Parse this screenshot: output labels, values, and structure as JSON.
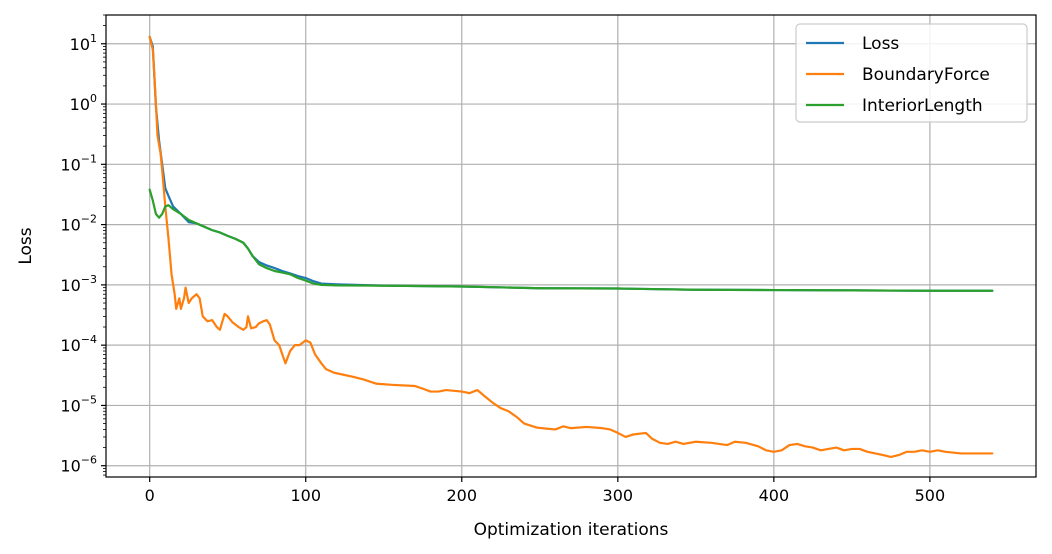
{
  "chart_data": {
    "type": "line",
    "title": "",
    "xlabel": "Optimization iterations",
    "ylabel": "Loss",
    "yscale": "log",
    "xlim": [
      -28,
      568
    ],
    "ylim": [
      6.5e-07,
      30
    ],
    "grid": true,
    "legend_position": "top-right",
    "x_ticks": [
      0,
      100,
      200,
      300,
      400,
      500
    ],
    "y_ticks": [
      {
        "value": 1e-06,
        "label": "10",
        "exp": "−6"
      },
      {
        "value": 1e-05,
        "label": "10",
        "exp": "−5"
      },
      {
        "value": 0.0001,
        "label": "10",
        "exp": "−4"
      },
      {
        "value": 0.001,
        "label": "10",
        "exp": "−3"
      },
      {
        "value": 0.01,
        "label": "10",
        "exp": "−2"
      },
      {
        "value": 0.1,
        "label": "10",
        "exp": "−1"
      },
      {
        "value": 1,
        "label": "10",
        "exp": "0"
      },
      {
        "value": 10,
        "label": "10",
        "exp": "1"
      }
    ],
    "series": [
      {
        "name": "Loss",
        "color": "#1f77b4",
        "points": [
          [
            0,
            13
          ],
          [
            2,
            9
          ],
          [
            4,
            0.9
          ],
          [
            6,
            0.25
          ],
          [
            8,
            0.1
          ],
          [
            10,
            0.04
          ],
          [
            12,
            0.03
          ],
          [
            15,
            0.02
          ],
          [
            20,
            0.015
          ],
          [
            25,
            0.011
          ],
          [
            30,
            0.0105
          ],
          [
            35,
            0.0092
          ],
          [
            40,
            0.0081
          ],
          [
            45,
            0.0074
          ],
          [
            50,
            0.0065
          ],
          [
            55,
            0.0058
          ],
          [
            60,
            0.005
          ],
          [
            63,
            0.004
          ],
          [
            66,
            0.003
          ],
          [
            70,
            0.0024
          ],
          [
            75,
            0.0021
          ],
          [
            80,
            0.0019
          ],
          [
            85,
            0.0017
          ],
          [
            90,
            0.00155
          ],
          [
            95,
            0.0014
          ],
          [
            100,
            0.0013
          ],
          [
            105,
            0.00115
          ],
          [
            110,
            0.00105
          ],
          [
            120,
            0.00102
          ],
          [
            150,
            0.00097
          ],
          [
            200,
            0.00094
          ],
          [
            250,
            0.00088
          ],
          [
            300,
            0.00087
          ],
          [
            350,
            0.00083
          ],
          [
            400,
            0.00082
          ],
          [
            450,
            0.00081
          ],
          [
            500,
            0.0008
          ],
          [
            540,
            0.0008
          ]
        ]
      },
      {
        "name": "BoundaryForce",
        "color": "#ff7f0e",
        "points": [
          [
            0,
            13
          ],
          [
            2,
            8
          ],
          [
            3,
            3
          ],
          [
            4,
            1
          ],
          [
            5,
            0.3
          ],
          [
            7,
            0.15
          ],
          [
            8,
            0.08
          ],
          [
            10,
            0.02
          ],
          [
            12,
            0.006
          ],
          [
            14,
            0.0015
          ],
          [
            16,
            0.0007
          ],
          [
            17,
            0.0004
          ],
          [
            19,
            0.0006
          ],
          [
            20,
            0.0004
          ],
          [
            22,
            0.0006
          ],
          [
            23,
            0.0009
          ],
          [
            25,
            0.0005
          ],
          [
            27,
            0.0006
          ],
          [
            30,
            0.0007
          ],
          [
            32,
            0.0006
          ],
          [
            34,
            0.0003
          ],
          [
            37,
            0.00025
          ],
          [
            40,
            0.00026
          ],
          [
            43,
            0.0002
          ],
          [
            45,
            0.00018
          ],
          [
            48,
            0.00033
          ],
          [
            50,
            0.0003
          ],
          [
            53,
            0.00024
          ],
          [
            57,
            0.0002
          ],
          [
            60,
            0.00018
          ],
          [
            62,
            0.0002
          ],
          [
            63,
            0.0003
          ],
          [
            65,
            0.00019
          ],
          [
            68,
            0.0002
          ],
          [
            70,
            0.00023
          ],
          [
            73,
            0.00025
          ],
          [
            75,
            0.00026
          ],
          [
            77,
            0.00022
          ],
          [
            80,
            0.00012
          ],
          [
            83,
            0.0001
          ],
          [
            85,
            7e-05
          ],
          [
            87,
            5e-05
          ],
          [
            90,
            8e-05
          ],
          [
            93,
            0.0001
          ],
          [
            96,
            0.0001
          ],
          [
            100,
            0.00012
          ],
          [
            103,
            0.00011
          ],
          [
            106,
            7e-05
          ],
          [
            110,
            5e-05
          ],
          [
            113,
            4e-05
          ],
          [
            118,
            3.5e-05
          ],
          [
            125,
            3.2e-05
          ],
          [
            130,
            3e-05
          ],
          [
            137,
            2.7e-05
          ],
          [
            145,
            2.3e-05
          ],
          [
            155,
            2.2e-05
          ],
          [
            170,
            2.1e-05
          ],
          [
            175,
            1.9e-05
          ],
          [
            180,
            1.7e-05
          ],
          [
            185,
            1.7e-05
          ],
          [
            190,
            1.8e-05
          ],
          [
            200,
            1.7e-05
          ],
          [
            205,
            1.6e-05
          ],
          [
            210,
            1.8e-05
          ],
          [
            215,
            1.4e-05
          ],
          [
            220,
            1.1e-05
          ],
          [
            225,
            9e-06
          ],
          [
            230,
            8e-06
          ],
          [
            235,
            6.5e-06
          ],
          [
            240,
            5e-06
          ],
          [
            248,
            4.3e-06
          ],
          [
            255,
            4.1e-06
          ],
          [
            260,
            4e-06
          ],
          [
            265,
            4.5e-06
          ],
          [
            270,
            4.2e-06
          ],
          [
            280,
            4.4e-06
          ],
          [
            290,
            4.2e-06
          ],
          [
            295,
            4e-06
          ],
          [
            300,
            3.5e-06
          ],
          [
            305,
            3e-06
          ],
          [
            310,
            3.3e-06
          ],
          [
            318,
            3.5e-06
          ],
          [
            322,
            2.8e-06
          ],
          [
            327,
            2.4e-06
          ],
          [
            332,
            2.3e-06
          ],
          [
            337,
            2.5e-06
          ],
          [
            342,
            2.3e-06
          ],
          [
            350,
            2.5e-06
          ],
          [
            360,
            2.4e-06
          ],
          [
            370,
            2.2e-06
          ],
          [
            375,
            2.5e-06
          ],
          [
            382,
            2.4e-06
          ],
          [
            390,
            2.1e-06
          ],
          [
            395,
            1.8e-06
          ],
          [
            400,
            1.7e-06
          ],
          [
            405,
            1.8e-06
          ],
          [
            410,
            2.2e-06
          ],
          [
            415,
            2.3e-06
          ],
          [
            420,
            2.1e-06
          ],
          [
            425,
            2e-06
          ],
          [
            430,
            1.8e-06
          ],
          [
            435,
            1.9e-06
          ],
          [
            440,
            2e-06
          ],
          [
            445,
            1.8e-06
          ],
          [
            450,
            1.9e-06
          ],
          [
            455,
            1.9e-06
          ],
          [
            460,
            1.7e-06
          ],
          [
            465,
            1.6e-06
          ],
          [
            470,
            1.5e-06
          ],
          [
            475,
            1.4e-06
          ],
          [
            480,
            1.5e-06
          ],
          [
            485,
            1.7e-06
          ],
          [
            490,
            1.7e-06
          ],
          [
            495,
            1.8e-06
          ],
          [
            500,
            1.7e-06
          ],
          [
            505,
            1.8e-06
          ],
          [
            510,
            1.7e-06
          ],
          [
            520,
            1.6e-06
          ],
          [
            530,
            1.6e-06
          ],
          [
            540,
            1.6e-06
          ]
        ]
      },
      {
        "name": "InteriorLength",
        "color": "#2ca02c",
        "points": [
          [
            0,
            0.038
          ],
          [
            2,
            0.025
          ],
          [
            4,
            0.015
          ],
          [
            6,
            0.013
          ],
          [
            8,
            0.015
          ],
          [
            10,
            0.02
          ],
          [
            12,
            0.021
          ],
          [
            15,
            0.018
          ],
          [
            20,
            0.015
          ],
          [
            25,
            0.012
          ],
          [
            30,
            0.0105
          ],
          [
            35,
            0.0092
          ],
          [
            40,
            0.0081
          ],
          [
            45,
            0.0074
          ],
          [
            50,
            0.0065
          ],
          [
            55,
            0.0058
          ],
          [
            60,
            0.005
          ],
          [
            63,
            0.004
          ],
          [
            66,
            0.003
          ],
          [
            70,
            0.0022
          ],
          [
            75,
            0.0019
          ],
          [
            80,
            0.0017
          ],
          [
            85,
            0.0016
          ],
          [
            90,
            0.0015
          ],
          [
            95,
            0.0013
          ],
          [
            100,
            0.00118
          ],
          [
            105,
            0.00105
          ],
          [
            110,
            0.001
          ],
          [
            120,
            0.00098
          ],
          [
            150,
            0.00097
          ],
          [
            200,
            0.00094
          ],
          [
            250,
            0.00088
          ],
          [
            300,
            0.00087
          ],
          [
            350,
            0.00083
          ],
          [
            400,
            0.00082
          ],
          [
            450,
            0.00081
          ],
          [
            500,
            0.0008
          ],
          [
            540,
            0.0008
          ]
        ]
      }
    ]
  }
}
